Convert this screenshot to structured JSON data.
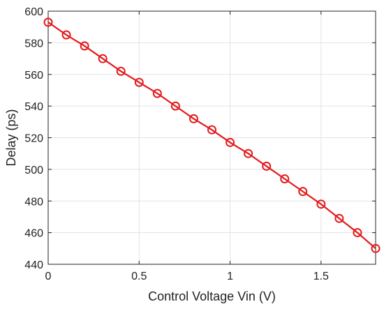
{
  "chart_data": {
    "type": "line",
    "title": "",
    "xlabel": "Control Voltage Vin (V)",
    "ylabel": "Delay (ps)",
    "xlim": [
      0,
      1.8
    ],
    "ylim": [
      440,
      600
    ],
    "xticks": [
      0,
      0.5,
      1,
      1.5
    ],
    "xtick_labels": [
      "0",
      "0.5",
      "1",
      "1.5"
    ],
    "yticks": [
      440,
      460,
      480,
      500,
      520,
      540,
      560,
      580,
      600
    ],
    "ytick_labels": [
      "440",
      "460",
      "480",
      "500",
      "520",
      "540",
      "560",
      "580",
      "600"
    ],
    "grid": true,
    "legend": "none",
    "series": [
      {
        "color": "#e41a1c",
        "marker": "circle",
        "x": [
          0,
          0.1,
          0.2,
          0.3,
          0.4,
          0.5,
          0.6,
          0.7,
          0.8,
          0.9,
          1.0,
          1.1,
          1.2,
          1.3,
          1.4,
          1.5,
          1.6,
          1.7,
          1.8
        ],
        "y": [
          593,
          585,
          578,
          570,
          562,
          555,
          548,
          540,
          532,
          525,
          517,
          510,
          502,
          494,
          486,
          478,
          469,
          460,
          450
        ]
      }
    ]
  },
  "colors": {
    "axis": "#222222",
    "grid": "#e3e3e3",
    "background": "#ffffff"
  }
}
